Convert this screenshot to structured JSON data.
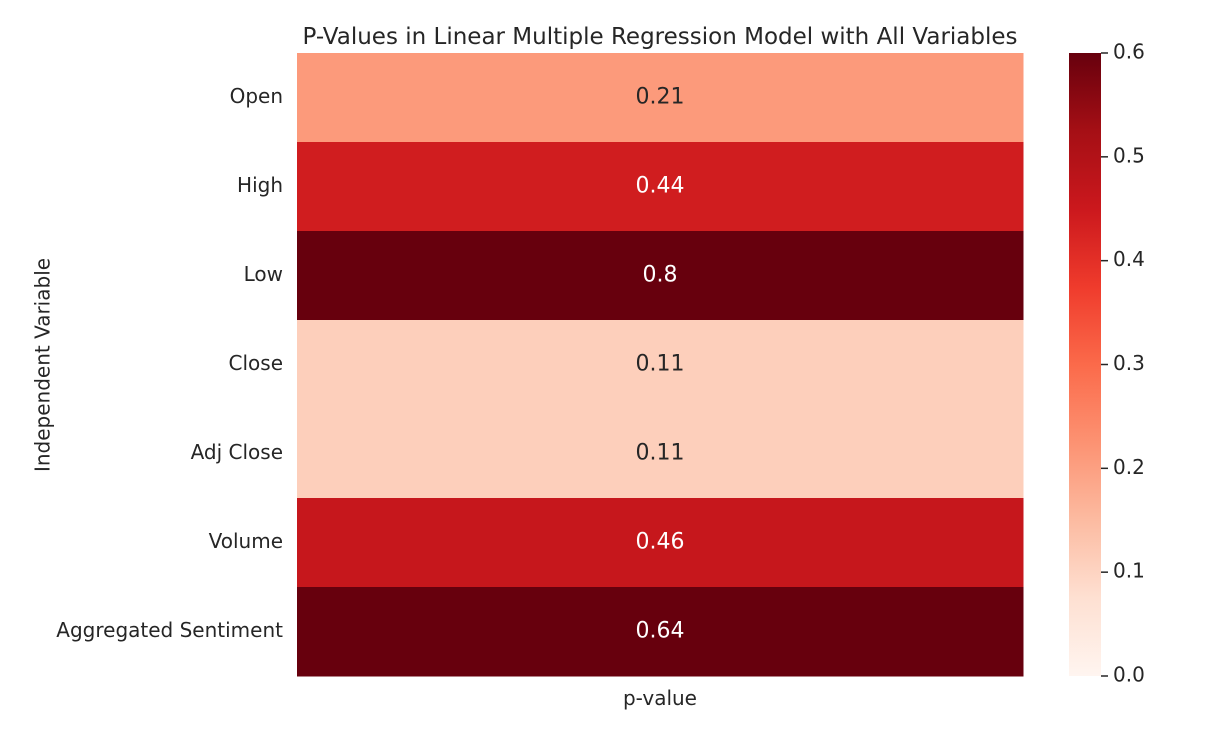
{
  "chart_data": {
    "type": "heatmap",
    "title": "P-Values in Linear Multiple Regression Model with All Variables",
    "xlabel": "",
    "ylabel": "Independent Variable",
    "columns": [
      "p-value"
    ],
    "rows": [
      "Open",
      "High",
      "Low",
      "Close",
      "Adj Close",
      "Volume",
      "Aggregated Sentiment"
    ],
    "values": [
      0.21,
      0.44,
      0.8,
      0.11,
      0.11,
      0.46,
      0.64
    ],
    "annotations": [
      "0.21",
      "0.44",
      "0.8",
      "0.11",
      "0.11",
      "0.46",
      "0.64"
    ],
    "colormap": "Reds",
    "vmin": 0.0,
    "vmax": 0.6,
    "colorbar_ticks": [
      "0.0",
      "0.1",
      "0.2",
      "0.3",
      "0.4",
      "0.5",
      "0.6"
    ],
    "colors": {
      "ramp": [
        "#fff5f0",
        "#fee0d2",
        "#fcbba1",
        "#fc9272",
        "#fb6a4a",
        "#ef3b2c",
        "#cb181d",
        "#a50f15",
        "#67000d"
      ],
      "text_dark": "#262626",
      "text_light": "#ffffff"
    }
  }
}
